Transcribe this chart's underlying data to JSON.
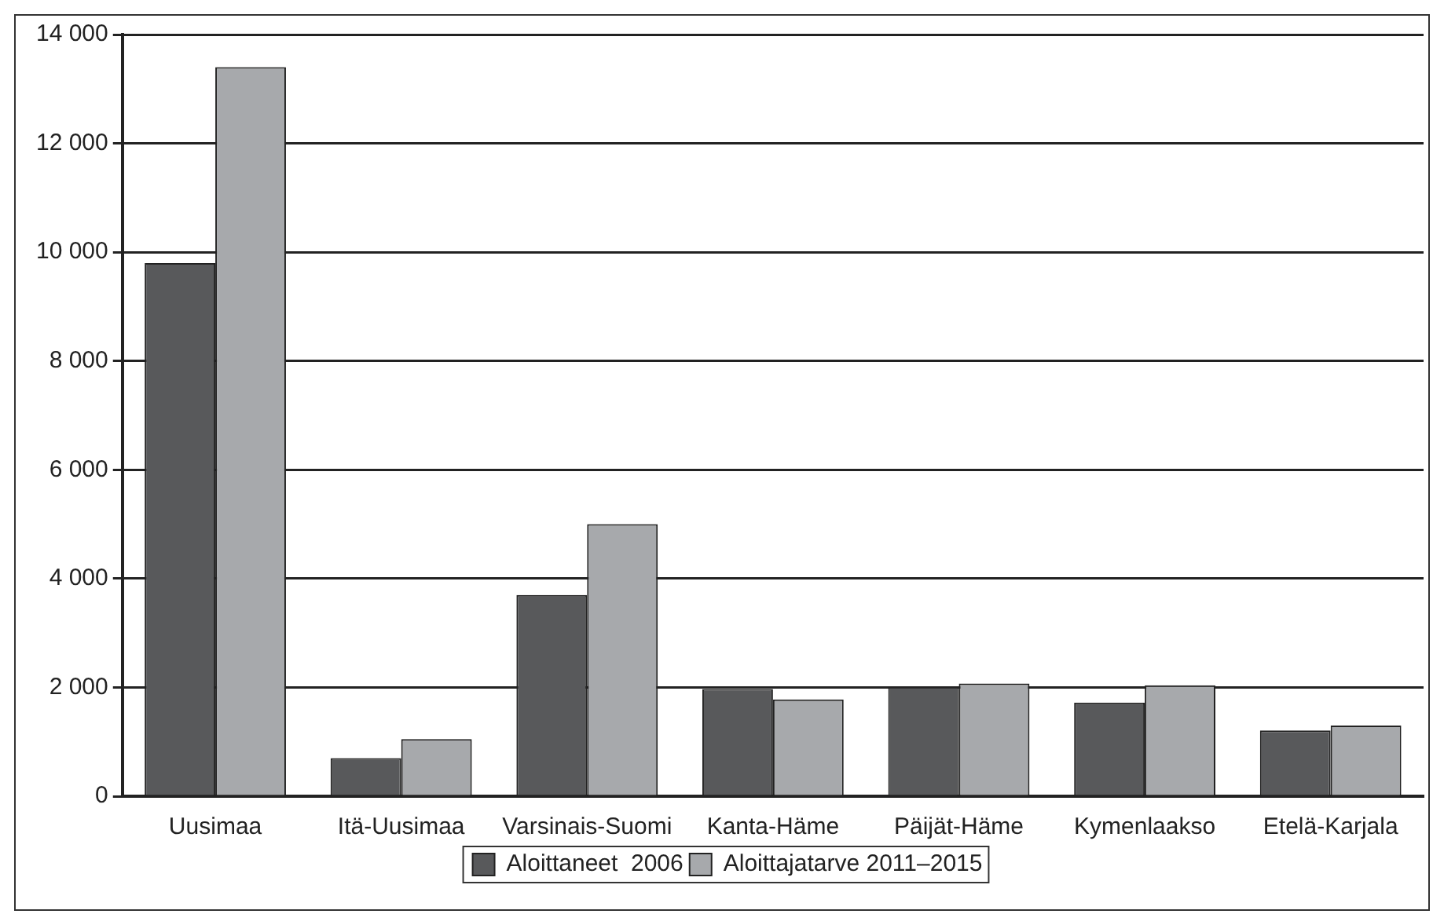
{
  "chart_data": {
    "type": "bar",
    "categories": [
      "Uusimaa",
      "Itä-Uusimaa",
      "Varsinais-Suomi",
      "Kanta-Häme",
      "Päijät-Häme",
      "Kymenlaakso",
      "Etelä-Karjala"
    ],
    "series": [
      {
        "name": "Aloittaneet  2006",
        "color": "#58595b",
        "values": [
          9800,
          700,
          3700,
          1970,
          2010,
          1720,
          1210
        ]
      },
      {
        "name": "Aloittajatarve 2011–2015",
        "color": "#a7a9ac",
        "values": [
          13400,
          1050,
          5000,
          1780,
          2070,
          2040,
          1300
        ]
      }
    ],
    "ylim": [
      0,
      14000
    ],
    "yticks": [
      {
        "value": 0,
        "label": "0"
      },
      {
        "value": 2000,
        "label": "2 000"
      },
      {
        "value": 4000,
        "label": "4 000"
      },
      {
        "value": 6000,
        "label": "6 000"
      },
      {
        "value": 8000,
        "label": "8 000"
      },
      {
        "value": 10000,
        "label": "10 000"
      },
      {
        "value": 12000,
        "label": "12 000"
      },
      {
        "value": 14000,
        "label": "14 000"
      }
    ],
    "grid": "y",
    "legend": "bottom"
  }
}
